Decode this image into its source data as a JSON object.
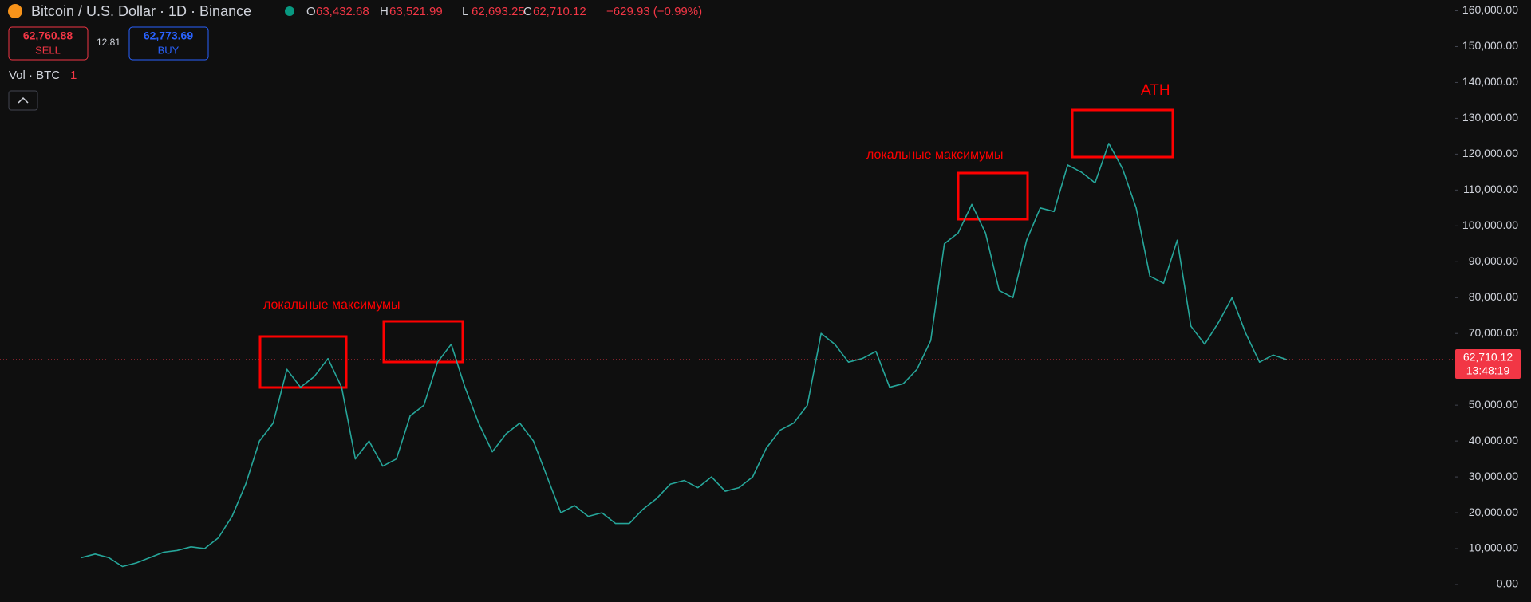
{
  "header": {
    "title": "Bitcoin / U.S. Dollar · 1D · Binance",
    "ohlc": [
      {
        "label": "O",
        "value": "63,432.68"
      },
      {
        "label": "H",
        "value": "63,521.99"
      },
      {
        "label": "L",
        "value": "62,693.25"
      },
      {
        "label": "C",
        "value": "62,710.12"
      }
    ],
    "change": "−629.93 (−0.99%)",
    "sell": {
      "price": "62,760.88",
      "label": "SELL"
    },
    "spread": "12.81",
    "buy": {
      "price": "62,773.69",
      "label": "BUY"
    },
    "volume_label": "Vol · BTC",
    "volume_value": "1"
  },
  "chart_data": {
    "type": "line",
    "color": "#26a69a",
    "values": [
      7500,
      8500,
      7500,
      5000,
      6000,
      7500,
      9000,
      9500,
      10500,
      10000,
      13000,
      19000,
      28000,
      40000,
      45000,
      60000,
      55000,
      58000,
      63000,
      55000,
      35000,
      40000,
      33000,
      35000,
      47000,
      50000,
      62000,
      67000,
      55000,
      45000,
      37000,
      42000,
      45000,
      40000,
      30000,
      20000,
      22000,
      19000,
      20000,
      17000,
      17000,
      21000,
      24000,
      28000,
      29000,
      27000,
      30000,
      26000,
      27000,
      30000,
      38000,
      43000,
      45000,
      50000,
      70000,
      67000,
      62000,
      63000,
      65000,
      55000,
      56000,
      60000,
      68000,
      95000,
      98000,
      106000,
      98000,
      82000,
      80000,
      96000,
      105000,
      104000,
      117000,
      115000,
      112000,
      123000,
      116000,
      105000,
      86000,
      84000,
      96000,
      72000,
      67000,
      73000,
      80000,
      70000,
      62000,
      64000,
      62710.12
    ],
    "ylim": [
      0,
      160000
    ],
    "yticks": [
      {
        "value": 0,
        "label": "0.00"
      },
      {
        "value": 10000,
        "label": "10,000.00"
      },
      {
        "value": 20000,
        "label": "20,000.00"
      },
      {
        "value": 30000,
        "label": "30,000.00"
      },
      {
        "value": 40000,
        "label": "40,000.00"
      },
      {
        "value": 50000,
        "label": "50,000.00"
      },
      {
        "value": 60000,
        "label": "60,000.00"
      },
      {
        "value": 70000,
        "label": "70,000.00"
      },
      {
        "value": 80000,
        "label": "80,000.00"
      },
      {
        "value": 90000,
        "label": "90,000.00"
      },
      {
        "value": 100000,
        "label": "100,000.00"
      },
      {
        "value": 110000,
        "label": "110,000.00"
      },
      {
        "value": 120000,
        "label": "120,000.00"
      },
      {
        "value": 130000,
        "label": "130,000.00"
      },
      {
        "value": 140000,
        "label": "140,000.00"
      },
      {
        "value": 150000,
        "label": "150,000.00"
      },
      {
        "value": 160000,
        "label": "160,000.00"
      }
    ],
    "last_price": {
      "value": 62710.12,
      "label": "62,710.12",
      "countdown": "13:48:19"
    },
    "annotations": [
      "локальные максимумы",
      "локальные максимумы",
      "ATH"
    ]
  }
}
